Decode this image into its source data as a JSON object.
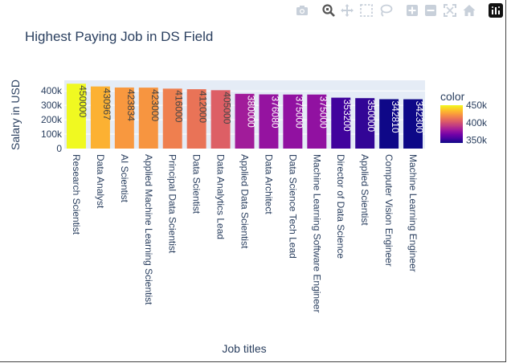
{
  "toolbar": {
    "icons": [
      "camera-icon",
      "zoom-icon",
      "pan-icon",
      "box-select-icon",
      "lasso-select-icon",
      "zoom-in-icon",
      "zoom-out-icon",
      "autoscale-icon",
      "reset-axes-icon",
      "plotly-logo-icon"
    ]
  },
  "chart_data": {
    "type": "bar",
    "title": "Highest Paying Job in DS Field",
    "xlabel": "Job titles",
    "ylabel": "Salary in USD",
    "categories": [
      "Research Scientist",
      "Data Analyst",
      "AI Scientist",
      "Applied Machine Learning Scientist",
      "Principal Data Scientist",
      "Data Scientist",
      "Data Analytics Lead",
      "Applied Data Scientist",
      "Data Architect",
      "Data Science Tech Lead",
      "Machine Learning Software Engineer",
      "Director of Data Science",
      "Applied Scientist",
      "Computer Vision Engineer",
      "Machine Learning Engineer"
    ],
    "values": [
      450000,
      430967,
      423834,
      423000,
      416000,
      412000,
      405000,
      380000,
      376080,
      375000,
      375000,
      353200,
      350000,
      342810,
      342300
    ],
    "data_labels": [
      "450000",
      "430967",
      "423834",
      "423000",
      "416000",
      "412000",
      "405000",
      "380000",
      "376080",
      "375000",
      "375000",
      "353200",
      "350000",
      "342810",
      "342300"
    ],
    "ylim": [
      0,
      473684
    ],
    "yticks": [
      0,
      100000,
      200000,
      300000,
      400000
    ],
    "ytick_labels": [
      "0",
      "100k",
      "200k",
      "300k",
      "400k"
    ],
    "grid": true,
    "colorbar": {
      "title": "color",
      "range": [
        342300,
        450000
      ],
      "ticks": [
        350000,
        400000,
        450000
      ],
      "tick_labels": [
        "350k",
        "400k",
        "450k"
      ],
      "colorscale": [
        "#0d0887",
        "#46039f",
        "#7201a8",
        "#9c179e",
        "#bd3786",
        "#d8576b",
        "#ed7953",
        "#fb9f3a",
        "#fdca26",
        "#f0f921"
      ]
    },
    "colors": {
      "plot_bg": "#e5ecf6",
      "grid": "#ffffff",
      "text": "#2a3f5f"
    }
  }
}
